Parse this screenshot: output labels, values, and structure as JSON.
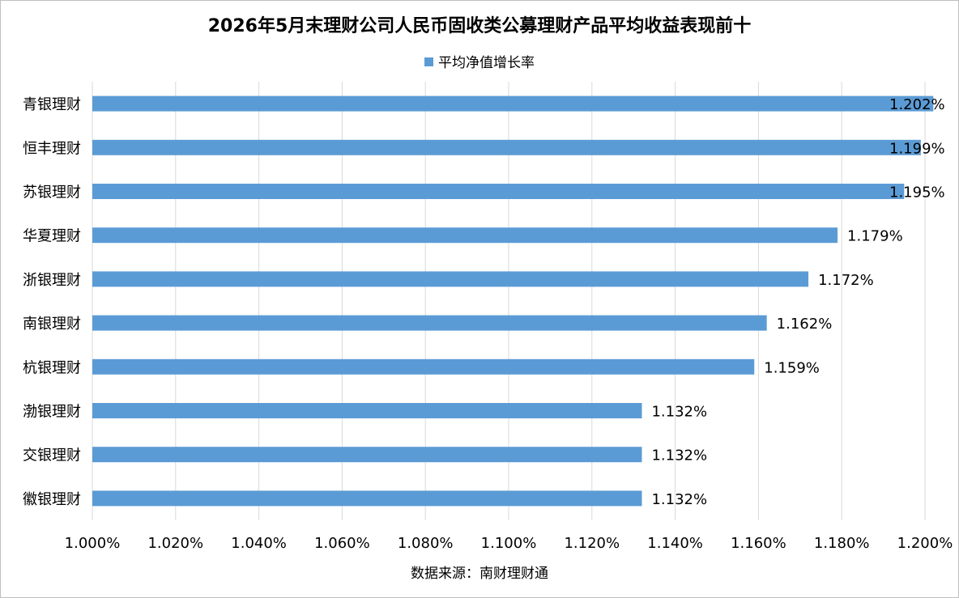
{
  "chart_data": {
    "type": "bar",
    "orientation": "horizontal",
    "title": "2026年5月末理财公司人民币固收类公募理财产品平均收益表现前十",
    "legend": {
      "position": "top",
      "entries": [
        "平均净值增长率"
      ]
    },
    "series": [
      {
        "name": "平均净值增长率",
        "color": "#5b9bd5",
        "values": [
          1.202,
          1.199,
          1.195,
          1.179,
          1.172,
          1.162,
          1.159,
          1.132,
          1.132,
          1.132
        ],
        "labels": [
          "1.202%",
          "1.199%",
          "1.195%",
          "1.179%",
          "1.172%",
          "1.162%",
          "1.159%",
          "1.132%",
          "1.132%",
          "1.132%"
        ]
      }
    ],
    "categories": [
      "青银理财",
      "恒丰理财",
      "苏银理财",
      "华夏理财",
      "浙银理财",
      "南银理财",
      "杭银理财",
      "渤银理财",
      "交银理财",
      "徽银理财"
    ],
    "xlim": [
      1.0,
      1.2
    ],
    "xticks": [
      1.0,
      1.02,
      1.04,
      1.06,
      1.08,
      1.1,
      1.12,
      1.14,
      1.16,
      1.18,
      1.2
    ],
    "xtick_labels": [
      "1.000%",
      "1.020%",
      "1.040%",
      "1.060%",
      "1.080%",
      "1.100%",
      "1.120%",
      "1.140%",
      "1.160%",
      "1.180%",
      "1.200%"
    ],
    "grid": "vertical",
    "xlabel": "",
    "ylabel": "",
    "source_note": "数据来源：南财理财通"
  }
}
